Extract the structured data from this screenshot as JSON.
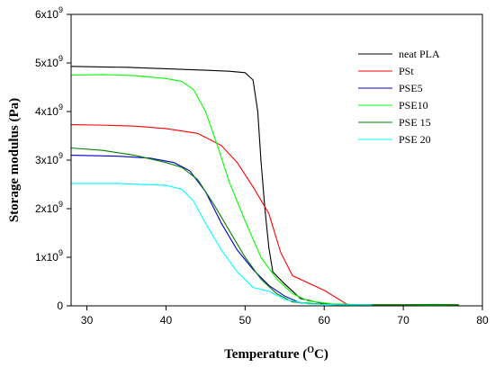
{
  "chart_data": {
    "type": "line",
    "title": "",
    "xlabel": "Temperature (°C)",
    "xlabel_parts": {
      "pre": "Temperature (",
      "sup_base": "O",
      "post": "C)"
    },
    "ylabel": "Storage modulus (Pa)",
    "xlim": [
      28,
      80
    ],
    "ylim": [
      0,
      6000000000.0
    ],
    "x_ticks": [
      30,
      40,
      50,
      60,
      70,
      80
    ],
    "y_ticks": [
      {
        "value": 0,
        "mantissa": "0",
        "exp": ""
      },
      {
        "value": 1000000000.0,
        "mantissa": "1x10",
        "exp": "9"
      },
      {
        "value": 2000000000.0,
        "mantissa": "2x10",
        "exp": "9"
      },
      {
        "value": 3000000000.0,
        "mantissa": "3x10",
        "exp": "9"
      },
      {
        "value": 4000000000.0,
        "mantissa": "4x10",
        "exp": "9"
      },
      {
        "value": 5000000000.0,
        "mantissa": "5x10",
        "exp": "9"
      },
      {
        "value": 6000000000.0,
        "mantissa": "6x10",
        "exp": "9"
      }
    ],
    "grid": false,
    "legend_position": "top-right",
    "series": [
      {
        "name": "neat PLA",
        "color": "#000000",
        "points": [
          [
            28,
            4930000000.0
          ],
          [
            35,
            4910000000.0
          ],
          [
            40,
            4880000000.0
          ],
          [
            45,
            4850000000.0
          ],
          [
            48,
            4830000000.0
          ],
          [
            50,
            4800000000.0
          ],
          [
            51,
            4650000000.0
          ],
          [
            51.6,
            4000000000.0
          ],
          [
            52,
            3000000000.0
          ],
          [
            52.5,
            2000000000.0
          ],
          [
            53,
            1200000000.0
          ],
          [
            53.5,
            700000000.0
          ],
          [
            55,
            450000000.0
          ],
          [
            57,
            150000000.0
          ],
          [
            60,
            40000000.0
          ],
          [
            65,
            20000000.0
          ],
          [
            70,
            20000000.0
          ],
          [
            77,
            20000000.0
          ]
        ]
      },
      {
        "name": "PSt",
        "color": "#ff0000",
        "points": [
          [
            28,
            3730000000.0
          ],
          [
            32,
            3720000000.0
          ],
          [
            36,
            3700000000.0
          ],
          [
            40,
            3650000000.0
          ],
          [
            44,
            3550000000.0
          ],
          [
            47,
            3300000000.0
          ],
          [
            49,
            2950000000.0
          ],
          [
            51,
            2450000000.0
          ],
          [
            53,
            1900000000.0
          ],
          [
            54.5,
            1100000000.0
          ],
          [
            56,
            620000000.0
          ],
          [
            60,
            320000000.0
          ],
          [
            63,
            20000000.0
          ],
          [
            70,
            20000000.0
          ],
          [
            77,
            20000000.0
          ]
        ]
      },
      {
        "name": "PSE5",
        "color": "#0000cc",
        "points": [
          [
            28,
            3100000000.0
          ],
          [
            34,
            3080000000.0
          ],
          [
            38,
            3040000000.0
          ],
          [
            41,
            2950000000.0
          ],
          [
            43,
            2780000000.0
          ],
          [
            45,
            2350000000.0
          ],
          [
            47,
            1700000000.0
          ],
          [
            49,
            1150000000.0
          ],
          [
            51,
            750000000.0
          ],
          [
            53,
            420000000.0
          ],
          [
            55,
            200000000.0
          ],
          [
            57,
            60000000.0
          ],
          [
            60,
            30000000.0
          ],
          [
            65,
            20000000.0
          ],
          [
            70,
            20000000.0
          ],
          [
            77,
            20000000.0
          ]
        ]
      },
      {
        "name": "PSE10",
        "color": "#00ff00",
        "points": [
          [
            28,
            4750000000.0
          ],
          [
            32,
            4760000000.0
          ],
          [
            36,
            4740000000.0
          ],
          [
            40,
            4680000000.0
          ],
          [
            42,
            4620000000.0
          ],
          [
            43.5,
            4450000000.0
          ],
          [
            45,
            4000000000.0
          ],
          [
            46.5,
            3300000000.0
          ],
          [
            48,
            2550000000.0
          ],
          [
            50,
            1750000000.0
          ],
          [
            52,
            1000000000.0
          ],
          [
            54,
            550000000.0
          ],
          [
            56,
            250000000.0
          ],
          [
            58,
            100000000.0
          ],
          [
            61,
            40000000.0
          ],
          [
            65,
            20000000.0
          ],
          [
            70,
            20000000.0
          ],
          [
            77,
            20000000.0
          ]
        ]
      },
      {
        "name": "PSE 15",
        "color": "#008000",
        "points": [
          [
            28,
            3250000000.0
          ],
          [
            32,
            3200000000.0
          ],
          [
            36,
            3100000000.0
          ],
          [
            40,
            2950000000.0
          ],
          [
            42,
            2850000000.0
          ],
          [
            44,
            2600000000.0
          ],
          [
            46,
            2100000000.0
          ],
          [
            48,
            1550000000.0
          ],
          [
            50,
            1000000000.0
          ],
          [
            52,
            550000000.0
          ],
          [
            54,
            250000000.0
          ],
          [
            56,
            80000000.0
          ],
          [
            60,
            30000000.0
          ],
          [
            65,
            20000000.0
          ],
          [
            70,
            20000000.0
          ],
          [
            74,
            30000000.0
          ],
          [
            77,
            20000000.0
          ]
        ]
      },
      {
        "name": "PSE 20",
        "color": "#00ffff",
        "points": [
          [
            28,
            2520000000.0
          ],
          [
            34,
            2520000000.0
          ],
          [
            40,
            2480000000.0
          ],
          [
            42,
            2400000000.0
          ],
          [
            43.5,
            2150000000.0
          ],
          [
            45,
            1700000000.0
          ],
          [
            47,
            1150000000.0
          ],
          [
            49,
            700000000.0
          ],
          [
            51,
            380000000.0
          ],
          [
            53,
            300000000.0
          ],
          [
            55,
            130000000.0
          ],
          [
            58,
            40000000.0
          ],
          [
            62,
            20000000.0
          ],
          [
            66,
            20000000.0
          ]
        ]
      }
    ]
  }
}
